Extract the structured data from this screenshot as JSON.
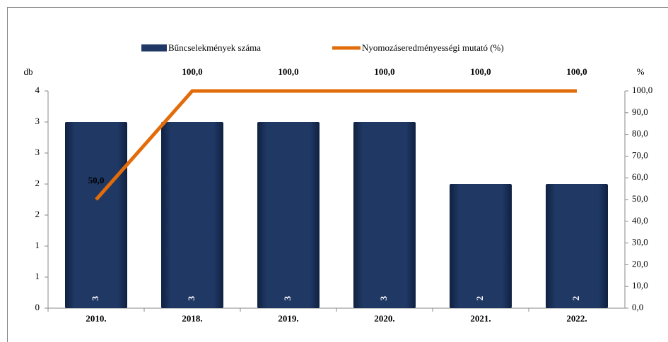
{
  "chart_data": {
    "type": "bar_line",
    "categories": [
      "2010.",
      "2018.",
      "2019.",
      "2020.",
      "2021.",
      "2022."
    ],
    "series": [
      {
        "name": "Bűncselekmények száma",
        "color": "#1f3864",
        "type": "bar",
        "values": [
          3,
          3,
          3,
          3,
          2,
          2
        ]
      },
      {
        "name": "Nyomozáseredményességi mutató (%)",
        "color": "#e36c0a",
        "type": "line",
        "axis": "y2",
        "values": [
          50,
          100,
          100,
          100,
          100,
          100
        ],
        "value_labels": [
          "50,0",
          "100,0",
          "100,0",
          "100,0",
          "100,0",
          "100,0"
        ]
      }
    ],
    "ylabel": "db",
    "y2label": "%",
    "ylim": [
      0,
      3.5
    ],
    "yticks": [
      0,
      {
        "value": 0.5,
        "label": "1"
      },
      1,
      {
        "value": 1.5,
        "label": "2"
      },
      2,
      {
        "value": 2.5,
        "label": "3"
      },
      3,
      {
        "value": 3.5,
        "label": "4"
      }
    ],
    "y2lim": [
      0,
      100
    ],
    "y2ticks": [
      {
        "value": 0,
        "label": "0,0"
      },
      {
        "value": 10,
        "label": "10,0"
      },
      {
        "value": 20,
        "label": "20,0"
      },
      {
        "value": 30,
        "label": "30,0"
      },
      {
        "value": 40,
        "label": "40,0"
      },
      {
        "value": 50,
        "label": "50,0"
      },
      {
        "value": 60,
        "label": "60,0"
      },
      {
        "value": 70,
        "label": "70,0"
      },
      {
        "value": 80,
        "label": "80,0"
      },
      {
        "value": 90,
        "label": "90,0"
      },
      {
        "value": 100,
        "label": "100,0"
      }
    ],
    "legend": "top"
  }
}
